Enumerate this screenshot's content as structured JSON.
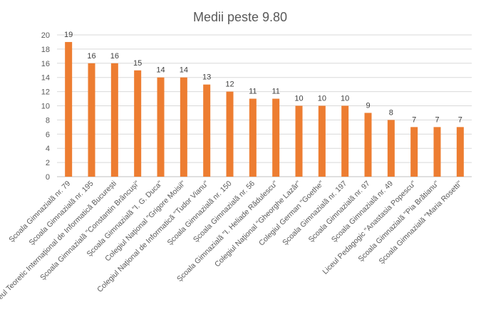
{
  "chart_data": {
    "type": "bar",
    "title": "Medii peste 9.80",
    "xlabel": "",
    "ylabel": "",
    "ylim": [
      0,
      20
    ],
    "yticks": [
      0,
      2,
      4,
      6,
      8,
      10,
      12,
      14,
      16,
      18,
      20
    ],
    "grid": true,
    "legend": "none",
    "bar_color": "#ED7D31",
    "categories": [
      "Școala Gimnazială nr. 79",
      "Școala Gimnazială nr. 195",
      "Liceul Teoretic Internațional de Informatică București",
      "Școala Gimnazială \"Constantin Brâncuși\"",
      "Școala Gimnazială \"I. G. Duca\"",
      "Colegiul Național \"Grigore Moisil\"",
      "Colegiul Național de Informatică \"Tudor Vianu\"",
      "Școala Gimnazială nr. 150",
      "Școala Gimnazială nr. 56",
      "Școala Gimnazială \"I. Heliade Rădulescu\"",
      "Colegiul Național \"Gheorghe Lazăr\"",
      "Colegiul German \"Goethe\"",
      "Școala Gimnazială nr. 197",
      "Școala Gimnazială nr. 97",
      "Școala Gimnazială nr. 49",
      "Liceul Pedagogic \"Anastasia Popescu\"",
      "Școala Gimnazială \"Pia Brătianu\"",
      "Școala Gimnazială \"Maria Rosetti\""
    ],
    "values": [
      19,
      16,
      16,
      15,
      14,
      14,
      13,
      12,
      11,
      11,
      10,
      10,
      10,
      9,
      8,
      7,
      7,
      7
    ]
  }
}
